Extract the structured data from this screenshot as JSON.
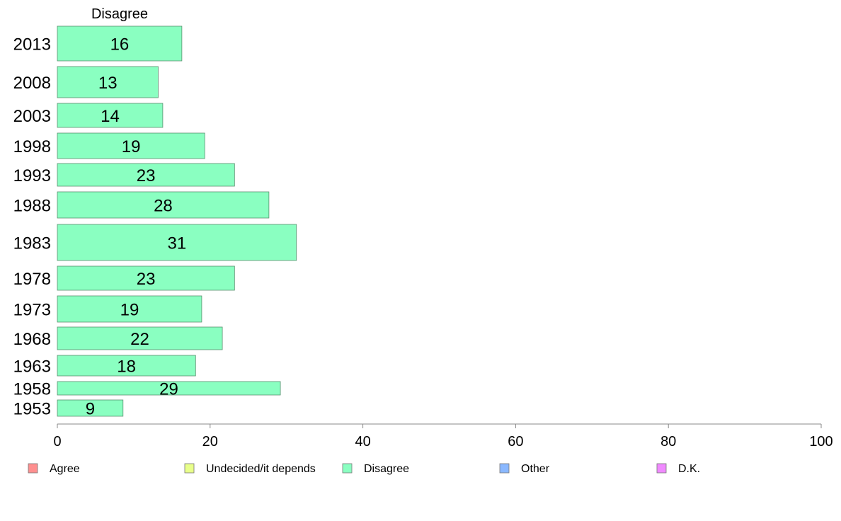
{
  "chart_data": {
    "type": "bar",
    "orientation": "horizontal",
    "series_title": "Disagree",
    "categories": [
      "2013",
      "2008",
      "2003",
      "1998",
      "1993",
      "1988",
      "1983",
      "1978",
      "1973",
      "1968",
      "1963",
      "1958",
      "1953"
    ],
    "series": [
      {
        "name": "Disagree",
        "color": "#8affc1",
        "values": [
          16,
          13,
          14,
          19,
          23,
          28,
          31,
          23,
          19,
          22,
          18,
          29,
          9
        ],
        "bar_values": [
          16.3,
          13.2,
          13.8,
          19.3,
          23.2,
          27.7,
          31.3,
          23.2,
          18.9,
          21.6,
          18.1,
          29.2,
          8.6
        ]
      }
    ],
    "xlim": [
      0,
      100
    ],
    "xticks": [
      "0",
      "20",
      "40",
      "60",
      "80",
      "100"
    ],
    "xtick_values": [
      0,
      20,
      40,
      60,
      80,
      100
    ],
    "grid": false,
    "legend_position": "bottom",
    "legend": [
      {
        "label": "Agree",
        "color": "#ff8f8f"
      },
      {
        "label": "Undecided/it depends",
        "color": "#e8ff8a"
      },
      {
        "label": "Disagree",
        "color": "#8affc1"
      },
      {
        "label": "Other",
        "color": "#8ab8ff"
      },
      {
        "label": "D.K.",
        "color": "#f08aff"
      }
    ]
  }
}
